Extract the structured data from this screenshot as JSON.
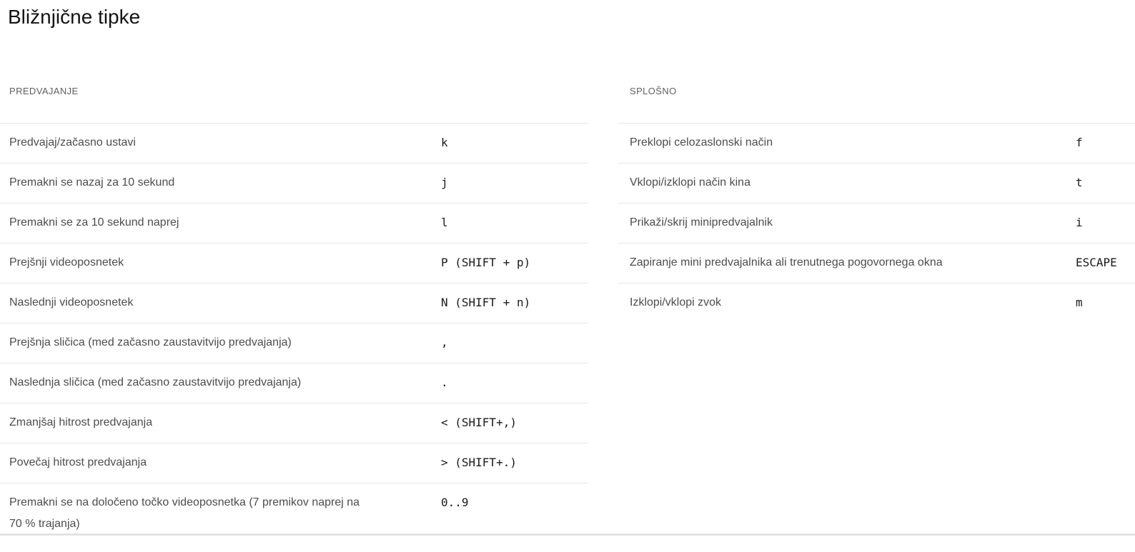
{
  "dialog": {
    "title": "Bližnjične tipke"
  },
  "sections": [
    {
      "heading": "PREDVAJANJE",
      "shortcuts": [
        {
          "label": "Predvajaj/začasno ustavi",
          "key": "k"
        },
        {
          "label": "Premakni se nazaj za 10 sekund",
          "key": "j"
        },
        {
          "label": "Premakni se za 10 sekund naprej",
          "key": "l"
        },
        {
          "label": "Prejšnji videoposnetek",
          "key": "P (SHIFT + p)"
        },
        {
          "label": "Naslednji videoposnetek",
          "key": "N (SHIFT + n)"
        },
        {
          "label": "Prejšnja sličica (med začasno zaustavitvijo predvajanja)",
          "key": ","
        },
        {
          "label": "Naslednja sličica (med začasno zaustavitvijo predvajanja)",
          "key": "."
        },
        {
          "label": "Zmanjšaj hitrost predvajanja",
          "key": "< (SHIFT+,)"
        },
        {
          "label": "Povečaj hitrost predvajanja",
          "key": "> (SHIFT+.)"
        },
        {
          "label": "Premakni se na določeno točko videoposnetka (7 premikov naprej na 70 % trajanja)",
          "key": "0..9"
        }
      ]
    },
    {
      "heading": "SPLOŠNO",
      "shortcuts": [
        {
          "label": "Preklopi celozaslonski način",
          "key": "f"
        },
        {
          "label": "Vklopi/izklopi način kina",
          "key": "t"
        },
        {
          "label": "Prikaži/skrij minipredvajalnik",
          "key": "i"
        },
        {
          "label": "Zapiranje mini predvajalnika ali trenutnega pogovornega okna",
          "key": "ESCAPE"
        },
        {
          "label": "Izklopi/vklopi zvok",
          "key": "m"
        }
      ]
    }
  ],
  "colors": {
    "bg": "#ffffff",
    "title": "#141414",
    "heading": "#606060",
    "label": "#4d4d4d",
    "key": "#1a1a1a",
    "divider": "#e7e7e7",
    "bottom_divider": "#e2e2e2"
  }
}
